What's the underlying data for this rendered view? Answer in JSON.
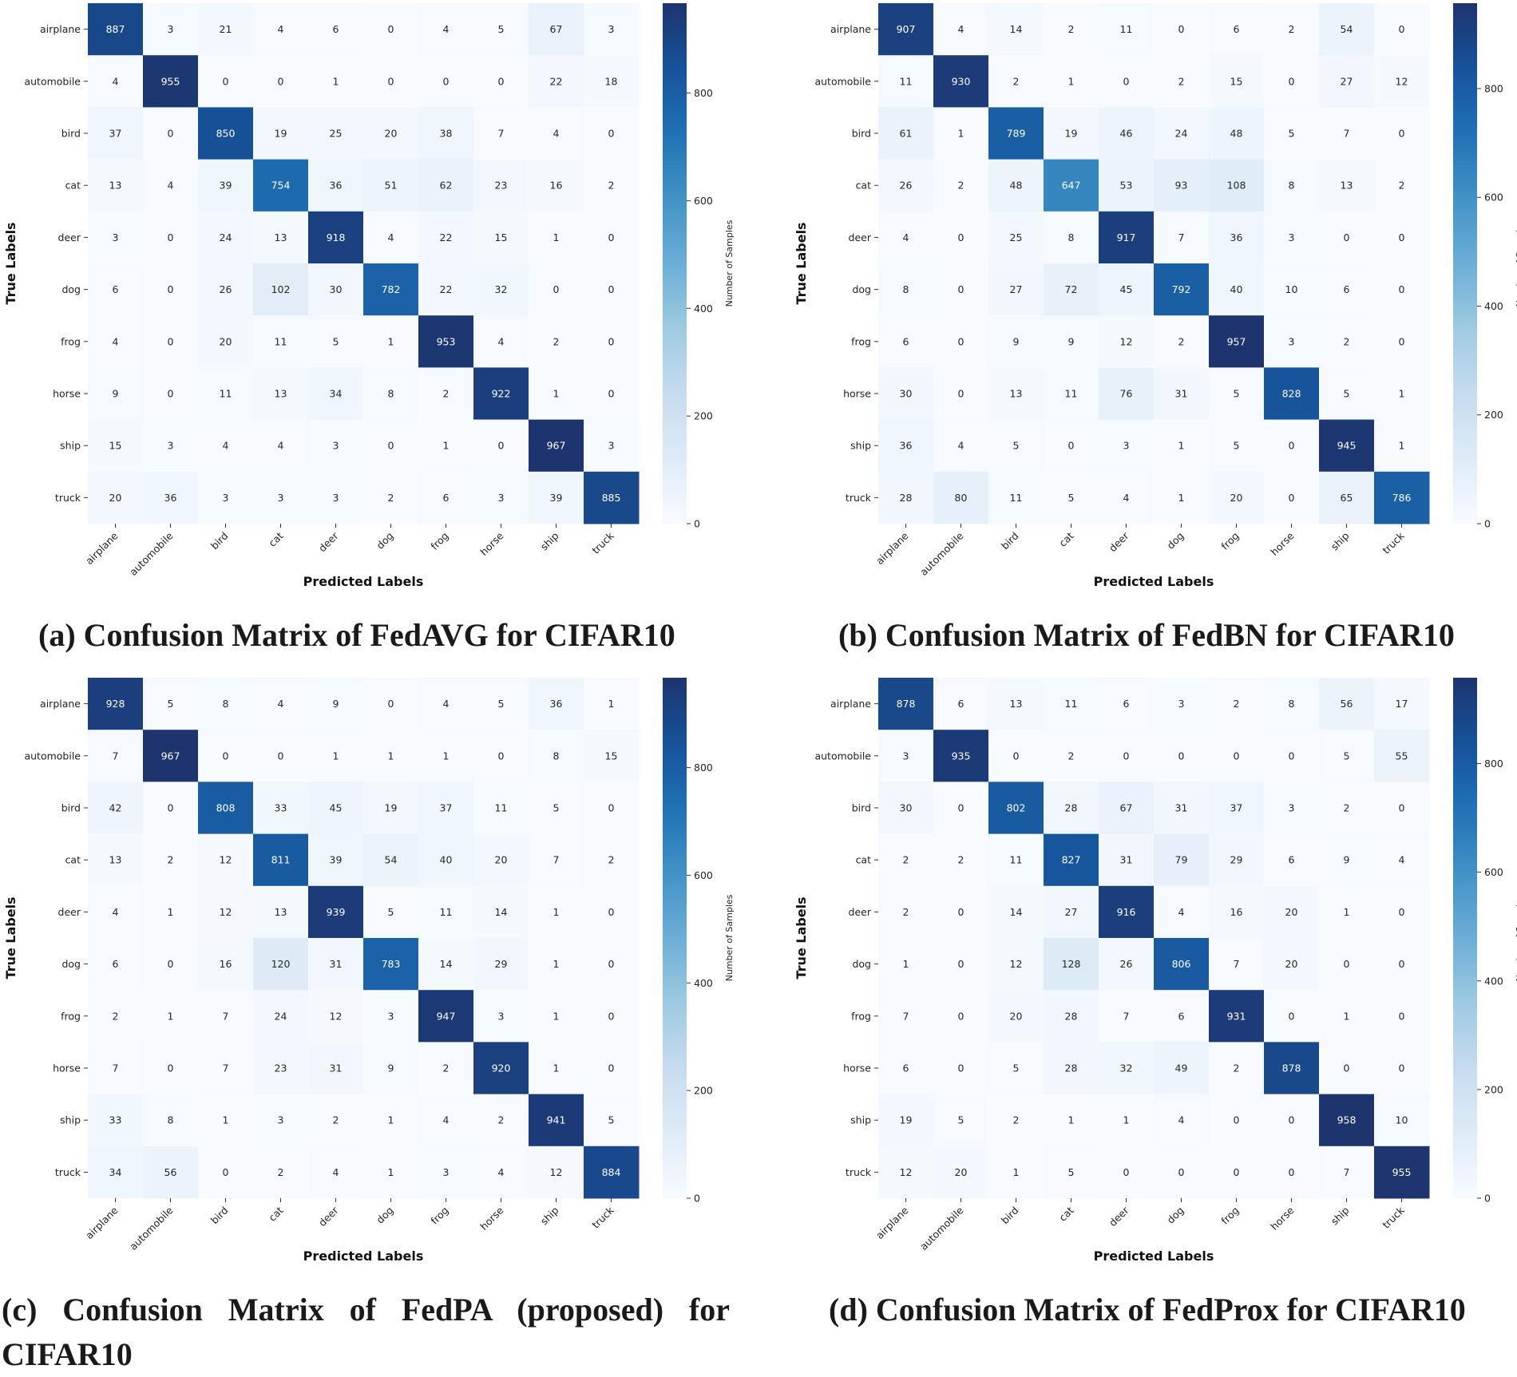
{
  "chart_data": [
    {
      "type": "heatmap",
      "caption": "(a) Confusion Matrix of FedAVG for CIFAR10",
      "xlabel": "Predicted Labels",
      "ylabel": "True Labels",
      "colorbar_label": "Number of Samples",
      "colorbar_ticks": [
        0,
        200,
        400,
        600,
        800
      ],
      "vmin": 0,
      "vmax": 967,
      "categories": [
        "airplane",
        "automobile",
        "bird",
        "cat",
        "deer",
        "dog",
        "frog",
        "horse",
        "ship",
        "truck"
      ],
      "matrix": [
        [
          887,
          3,
          21,
          4,
          6,
          0,
          4,
          5,
          67,
          3
        ],
        [
          4,
          955,
          0,
          0,
          1,
          0,
          0,
          0,
          22,
          18
        ],
        [
          37,
          0,
          850,
          19,
          25,
          20,
          38,
          7,
          4,
          0
        ],
        [
          13,
          4,
          39,
          754,
          36,
          51,
          62,
          23,
          16,
          2
        ],
        [
          3,
          0,
          24,
          13,
          918,
          4,
          22,
          15,
          1,
          0
        ],
        [
          6,
          0,
          26,
          102,
          30,
          782,
          22,
          32,
          0,
          0
        ],
        [
          4,
          0,
          20,
          11,
          5,
          1,
          953,
          4,
          2,
          0
        ],
        [
          9,
          0,
          11,
          13,
          34,
          8,
          2,
          922,
          1,
          0
        ],
        [
          15,
          3,
          4,
          4,
          3,
          0,
          1,
          0,
          967,
          3
        ],
        [
          20,
          36,
          3,
          3,
          3,
          2,
          6,
          3,
          39,
          885
        ]
      ]
    },
    {
      "type": "heatmap",
      "caption": "(b) Confusion Matrix of FedBN for CIFAR10",
      "xlabel": "Predicted Labels",
      "ylabel": "True Labels",
      "colorbar_label": "Number of Samples",
      "colorbar_ticks": [
        0,
        200,
        400,
        600,
        800
      ],
      "vmin": 0,
      "vmax": 957,
      "categories": [
        "airplane",
        "automobile",
        "bird",
        "cat",
        "deer",
        "dog",
        "frog",
        "horse",
        "ship",
        "truck"
      ],
      "matrix": [
        [
          907,
          4,
          14,
          2,
          11,
          0,
          6,
          2,
          54,
          0
        ],
        [
          11,
          930,
          2,
          1,
          0,
          2,
          15,
          0,
          27,
          12
        ],
        [
          61,
          1,
          789,
          19,
          46,
          24,
          48,
          5,
          7,
          0
        ],
        [
          26,
          2,
          48,
          647,
          53,
          93,
          108,
          8,
          13,
          2
        ],
        [
          4,
          0,
          25,
          8,
          917,
          7,
          36,
          3,
          0,
          0
        ],
        [
          8,
          0,
          27,
          72,
          45,
          792,
          40,
          10,
          6,
          0
        ],
        [
          6,
          0,
          9,
          9,
          12,
          2,
          957,
          3,
          2,
          0
        ],
        [
          30,
          0,
          13,
          11,
          76,
          31,
          5,
          828,
          5,
          1
        ],
        [
          36,
          4,
          5,
          0,
          3,
          1,
          5,
          0,
          945,
          1
        ],
        [
          28,
          80,
          11,
          5,
          4,
          1,
          20,
          0,
          65,
          786
        ]
      ]
    },
    {
      "type": "heatmap",
      "caption": "(c) Confusion Matrix of FedPA (proposed) for CIFAR10",
      "xlabel": "Predicted Labels",
      "ylabel": "True Labels",
      "colorbar_label": "Number of Samples",
      "colorbar_ticks": [
        0,
        200,
        400,
        600,
        800
      ],
      "vmin": 0,
      "vmax": 967,
      "categories": [
        "airplane",
        "automobile",
        "bird",
        "cat",
        "deer",
        "dog",
        "frog",
        "horse",
        "ship",
        "truck"
      ],
      "matrix": [
        [
          928,
          5,
          8,
          4,
          9,
          0,
          4,
          5,
          36,
          1
        ],
        [
          7,
          967,
          0,
          0,
          1,
          1,
          1,
          0,
          8,
          15
        ],
        [
          42,
          0,
          808,
          33,
          45,
          19,
          37,
          11,
          5,
          0
        ],
        [
          13,
          2,
          12,
          811,
          39,
          54,
          40,
          20,
          7,
          2
        ],
        [
          4,
          1,
          12,
          13,
          939,
          5,
          11,
          14,
          1,
          0
        ],
        [
          6,
          0,
          16,
          120,
          31,
          783,
          14,
          29,
          1,
          0
        ],
        [
          2,
          1,
          7,
          24,
          12,
          3,
          947,
          3,
          1,
          0
        ],
        [
          7,
          0,
          7,
          23,
          31,
          9,
          2,
          920,
          1,
          0
        ],
        [
          33,
          8,
          1,
          3,
          2,
          1,
          4,
          2,
          941,
          5
        ],
        [
          34,
          56,
          0,
          2,
          4,
          1,
          3,
          4,
          12,
          884
        ]
      ]
    },
    {
      "type": "heatmap",
      "caption": "(d) Confusion Matrix of FedProx for CIFAR10",
      "xlabel": "Predicted Labels",
      "ylabel": "True Labels",
      "colorbar_label": "Number of Samples",
      "colorbar_ticks": [
        0,
        200,
        400,
        600,
        800
      ],
      "vmin": 0,
      "vmax": 958,
      "categories": [
        "airplane",
        "automobile",
        "bird",
        "cat",
        "deer",
        "dog",
        "frog",
        "horse",
        "ship",
        "truck"
      ],
      "matrix": [
        [
          878,
          6,
          13,
          11,
          6,
          3,
          2,
          8,
          56,
          17
        ],
        [
          3,
          935,
          0,
          2,
          0,
          0,
          0,
          0,
          5,
          55
        ],
        [
          30,
          0,
          802,
          28,
          67,
          31,
          37,
          3,
          2,
          0
        ],
        [
          2,
          2,
          11,
          827,
          31,
          79,
          29,
          6,
          9,
          4
        ],
        [
          2,
          0,
          14,
          27,
          916,
          4,
          16,
          20,
          1,
          0
        ],
        [
          1,
          0,
          12,
          128,
          26,
          806,
          7,
          20,
          0,
          0
        ],
        [
          7,
          0,
          20,
          28,
          7,
          6,
          931,
          0,
          1,
          0
        ],
        [
          6,
          0,
          5,
          28,
          32,
          49,
          2,
          878,
          0,
          0
        ],
        [
          19,
          5,
          2,
          1,
          1,
          4,
          0,
          0,
          958,
          10
        ],
        [
          12,
          20,
          1,
          5,
          0,
          0,
          0,
          0,
          7,
          955
        ]
      ]
    }
  ]
}
